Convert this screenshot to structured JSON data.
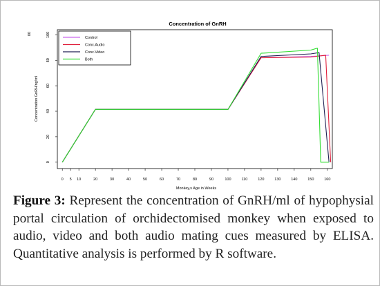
{
  "chart_data": {
    "type": "line",
    "title": "Concentration of GnRH",
    "xlabel": "Monkey,s Age in Weeks",
    "ylabel": "Concentration GnRH/ng/ml",
    "corner_label": "00",
    "xlim": [
      -3,
      163
    ],
    "ylim": [
      -5,
      104
    ],
    "x_ticks": [
      0,
      5,
      10,
      20,
      30,
      40,
      50,
      60,
      70,
      80,
      90,
      100,
      110,
      120,
      130,
      140,
      150,
      160
    ],
    "y_ticks": [
      0,
      20,
      40,
      60,
      80,
      100
    ],
    "grid": false,
    "legend_position": "top-left",
    "series": [
      {
        "name": "Control",
        "color": "#cc66ee",
        "x": [
          0,
          20,
          100,
          120,
          150,
          161
        ],
        "y": [
          0,
          41.5,
          41.5,
          82,
          83,
          84
        ]
      },
      {
        "name": "Conc.Audio",
        "color": "#e0203c",
        "x": [
          0,
          20,
          100,
          120,
          150,
          159,
          162
        ],
        "y": [
          0,
          41.5,
          41.5,
          82,
          82.5,
          84,
          0
        ]
      },
      {
        "name": "Conc.Video",
        "color": "#222255",
        "x": [
          0,
          20,
          100,
          120,
          150,
          155,
          161
        ],
        "y": [
          0,
          41.5,
          41.5,
          83,
          85,
          86,
          0
        ]
      },
      {
        "name": "Both",
        "color": "#33dd33",
        "x": [
          0,
          20,
          100,
          120,
          150,
          154,
          156,
          161
        ],
        "y": [
          0,
          41.5,
          41.5,
          85.5,
          88,
          89.5,
          0,
          0
        ]
      }
    ]
  },
  "caption": {
    "label": "Figure 3:",
    "text": "Represent the concentration of GnRH/ml of hypophysial portal circulation of orchidectomised monkey when exposed to audio, video and both audio mating cues measured by ELISA. Quantitative analysis is performed by R software."
  }
}
